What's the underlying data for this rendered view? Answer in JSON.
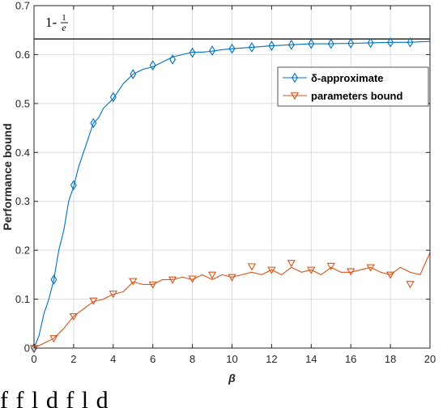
{
  "chart_data": {
    "type": "line",
    "title": "",
    "xlabel": "β",
    "ylabel": "Performance bound",
    "xlim": [
      0,
      20
    ],
    "ylim": [
      0,
      0.7
    ],
    "xticks": [
      0,
      2,
      4,
      6,
      8,
      10,
      12,
      14,
      16,
      18,
      20
    ],
    "xtick_labels": [
      "0",
      "2",
      "4",
      "6",
      "8",
      "10",
      "12",
      "14",
      "16",
      "18",
      "20"
    ],
    "yticks": [
      0,
      0.1,
      0.2,
      0.3,
      0.4,
      0.5,
      0.6,
      0.7
    ],
    "ytick_labels": [
      "0",
      "0.1",
      "0.2",
      "0.3",
      "0.4",
      "0.5",
      "0.6",
      "0.7"
    ],
    "grid": true,
    "legend_position": "top-right",
    "reference_line": {
      "y": 0.632,
      "label": "1-1/e",
      "label_main": "1-",
      "label_num": "1",
      "label_den": "e",
      "color": "#000000"
    },
    "series": [
      {
        "name": "δ-approximate",
        "color": "#0072BD",
        "marker": "diamond",
        "x": [
          0,
          0.25,
          0.5,
          0.75,
          1,
          1.25,
          1.5,
          1.75,
          2,
          2.25,
          2.5,
          2.75,
          3,
          3.25,
          3.5,
          3.75,
          4,
          4.5,
          5,
          5.5,
          6,
          6.5,
          7,
          7.5,
          8,
          8.5,
          9,
          9.5,
          10,
          11,
          12,
          13,
          14,
          15,
          16,
          17,
          18,
          19,
          20
        ],
        "y": [
          0,
          0.025,
          0.07,
          0.1,
          0.14,
          0.2,
          0.24,
          0.3,
          0.33,
          0.37,
          0.4,
          0.43,
          0.46,
          0.47,
          0.49,
          0.5,
          0.51,
          0.54,
          0.56,
          0.57,
          0.575,
          0.585,
          0.595,
          0.6,
          0.605,
          0.605,
          0.607,
          0.61,
          0.612,
          0.615,
          0.618,
          0.62,
          0.622,
          0.622,
          0.623,
          0.624,
          0.625,
          0.625,
          0.627
        ],
        "marker_x": [
          0,
          1,
          2,
          3,
          4,
          5,
          6,
          7,
          8,
          9,
          10,
          11,
          12,
          13,
          14,
          15,
          16,
          17,
          18,
          19
        ],
        "marker_y": [
          0,
          0.14,
          0.333,
          0.46,
          0.513,
          0.56,
          0.578,
          0.59,
          0.604,
          0.608,
          0.612,
          0.615,
          0.618,
          0.62,
          0.622,
          0.622,
          0.623,
          0.624,
          0.625,
          0.625
        ]
      },
      {
        "name": "parameters bound",
        "color": "#D95319",
        "marker": "triangle-down",
        "x": [
          0,
          0.5,
          1,
          1.5,
          2,
          2.5,
          3,
          3.5,
          4,
          4.5,
          5,
          5.5,
          6,
          6.5,
          7,
          7.5,
          8,
          8.5,
          9,
          9.5,
          10,
          10.5,
          11,
          11.5,
          12,
          12.5,
          13,
          13.5,
          14,
          14.5,
          15,
          15.5,
          16,
          16.5,
          17,
          17.5,
          18,
          18.5,
          19,
          19.5,
          20
        ],
        "y": [
          0,
          0.01,
          0.02,
          0.04,
          0.065,
          0.08,
          0.095,
          0.1,
          0.11,
          0.115,
          0.135,
          0.13,
          0.13,
          0.14,
          0.14,
          0.145,
          0.14,
          0.15,
          0.14,
          0.15,
          0.145,
          0.15,
          0.155,
          0.15,
          0.16,
          0.15,
          0.165,
          0.155,
          0.16,
          0.15,
          0.165,
          0.155,
          0.155,
          0.16,
          0.165,
          0.155,
          0.15,
          0.165,
          0.155,
          0.15,
          0.195
        ],
        "marker_x": [
          0,
          1,
          2,
          3,
          4,
          5,
          6,
          7,
          8,
          9,
          10,
          11,
          12,
          13,
          14,
          15,
          16,
          17,
          18,
          19
        ],
        "marker_y": [
          0,
          0.02,
          0.065,
          0.097,
          0.111,
          0.137,
          0.13,
          0.14,
          0.142,
          0.15,
          0.145,
          0.167,
          0.16,
          0.174,
          0.16,
          0.168,
          0.157,
          0.165,
          0.15,
          0.131
        ]
      }
    ]
  },
  "caption": "f   f        l   d   f        l   d"
}
